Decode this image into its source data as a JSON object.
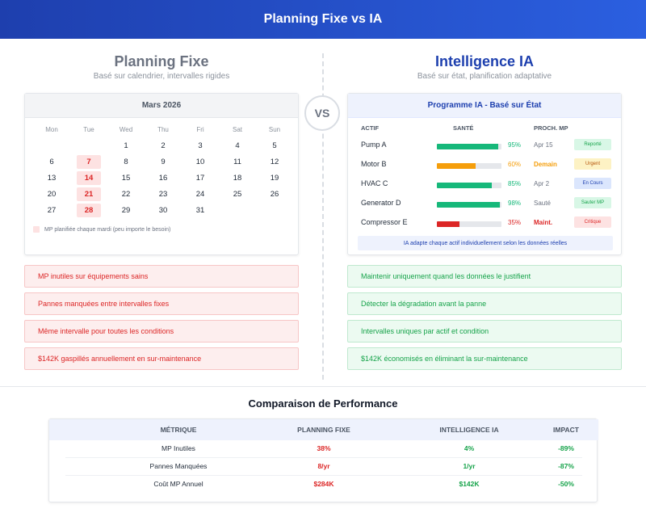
{
  "header": {
    "title": "Planning Fixe vs IA"
  },
  "vs_label": "VS",
  "left": {
    "title": "Planning Fixe",
    "subtitle": "Basé sur calendrier, intervalles rigides",
    "calendar": {
      "month": "Mars 2026",
      "weekdays": [
        "Mon",
        "Tue",
        "Wed",
        "Thu",
        "Fri",
        "Sat",
        "Sun"
      ],
      "weeks": [
        [
          "",
          "",
          "1",
          "2",
          "3",
          "4",
          "5"
        ],
        [
          "6",
          "7",
          "8",
          "9",
          "10",
          "11",
          "12"
        ],
        [
          "13",
          "14",
          "15",
          "16",
          "17",
          "18",
          "19"
        ],
        [
          "20",
          "21",
          "22",
          "23",
          "24",
          "25",
          "26"
        ],
        [
          "27",
          "28",
          "29",
          "30",
          "31",
          "",
          ""
        ]
      ],
      "highlighted": [
        "7",
        "14",
        "21",
        "28"
      ],
      "legend": "MP planifiée chaque mardi (peu importe le besoin)"
    },
    "issues": [
      "MP inutiles sur équipements sains",
      "Pannes manquées entre intervalles fixes",
      "Même intervalle pour toutes les conditions",
      "$142K gaspillés annuellement en sur-maintenance"
    ]
  },
  "right": {
    "title": "Intelligence IA",
    "subtitle": "Basé sur état, planification adaptative",
    "panel": {
      "title": "Programme IA - Basé sur État",
      "col_asset": "ACTIF",
      "col_health": "SANTÉ",
      "col_next": "PROCH. MP",
      "assets": [
        {
          "name": "Pump A",
          "health": 95,
          "health_label": "95%",
          "next": "Apr 15",
          "badge": "Reporté",
          "color": "#16b87a",
          "next_color": "#6b7280",
          "badge_bg": "#d8f7e6",
          "badge_fg": "#16a34a",
          "next_bold": false
        },
        {
          "name": "Motor B",
          "health": 60,
          "health_label": "60%",
          "next": "Demain",
          "badge": "Urgent",
          "color": "#f59e0b",
          "next_color": "#f59e0b",
          "badge_bg": "#fdf2c4",
          "badge_fg": "#b45309",
          "next_bold": true
        },
        {
          "name": "HVAC C",
          "health": 85,
          "health_label": "85%",
          "next": "Apr 2",
          "badge": "En Cours",
          "color": "#16b87a",
          "next_color": "#6b7280",
          "badge_bg": "#dbe6fd",
          "badge_fg": "#1e40af",
          "next_bold": false
        },
        {
          "name": "Generator D",
          "health": 98,
          "health_label": "98%",
          "next": "Sauté",
          "badge": "Sauter MP",
          "color": "#16b87a",
          "next_color": "#6b7280",
          "badge_bg": "#d8f7e6",
          "badge_fg": "#16a34a",
          "next_bold": false
        },
        {
          "name": "Compressor E",
          "health": 35,
          "health_label": "35%",
          "next": "Maint.",
          "badge": "Critique",
          "color": "#dc2626",
          "next_color": "#dc2626",
          "badge_bg": "#fde2e2",
          "badge_fg": "#dc2626",
          "next_bold": true
        }
      ],
      "note": "IA adapte chaque actif individuellement selon les données réelles"
    },
    "benefits": [
      "Maintenir uniquement quand les données le justifient",
      "Détecter la dégradation avant la panne",
      "Intervalles uniques par actif et condition",
      "$142K économisés en éliminant la sur-maintenance"
    ]
  },
  "comparison": {
    "title": "Comparaison de Performance",
    "headers": [
      "MÉTRIQUE",
      "PLANNING FIXE",
      "INTELLIGENCE IA",
      "IMPACT"
    ],
    "rows": [
      {
        "metric": "MP Inutiles",
        "fixed": "38%",
        "ai": "4%",
        "impact": "-89%"
      },
      {
        "metric": "Pannes Manquées",
        "fixed": "8/yr",
        "ai": "1/yr",
        "impact": "-87%"
      },
      {
        "metric": "Coût MP Annuel",
        "fixed": "$284K",
        "ai": "$142K",
        "impact": "-50%"
      }
    ]
  },
  "colors": {
    "accent": "#1e40af",
    "bad": "#dc2626",
    "good": "#16a34a"
  }
}
